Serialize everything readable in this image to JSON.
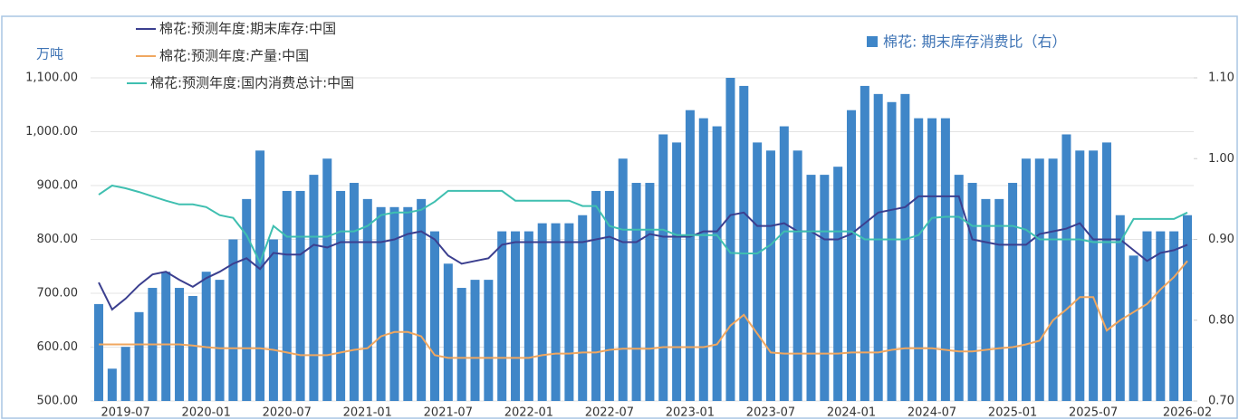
{
  "chart_data": {
    "type": "bar-line",
    "y_label": "万吨",
    "categories": [
      null,
      null,
      "2019-07",
      null,
      null,
      null,
      null,
      null,
      "2020-01",
      null,
      null,
      null,
      null,
      null,
      "2020-07",
      null,
      null,
      null,
      null,
      null,
      "2021-01",
      null,
      null,
      null,
      null,
      null,
      "2021-07",
      null,
      null,
      null,
      null,
      null,
      "2022-01",
      null,
      null,
      null,
      null,
      null,
      "2022-07",
      null,
      null,
      null,
      null,
      null,
      "2023-01",
      null,
      null,
      null,
      null,
      null,
      "2023-07",
      null,
      null,
      null,
      null,
      null,
      "2024-01",
      null,
      null,
      null,
      null,
      null,
      "2024-07",
      null,
      null,
      null,
      null,
      null,
      "2025-01",
      null,
      null,
      null,
      null,
      null,
      "2025-07",
      null,
      null,
      null,
      null,
      null,
      null,
      "2026-02"
    ],
    "ylim": [
      500,
      1100
    ],
    "yticks": [
      {
        "value": 500,
        "label": "500.00"
      },
      {
        "value": 600,
        "label": "600.00"
      },
      {
        "value": 700,
        "label": "700.00"
      },
      {
        "value": 800,
        "label": "800.00"
      },
      {
        "value": 900,
        "label": "900.00"
      },
      {
        "value": 1000,
        "label": "1,000.00"
      },
      {
        "value": 1100,
        "label": "1,100.00"
      }
    ],
    "y2lim": [
      0.7,
      1.1
    ],
    "y2ticks": [
      {
        "value": 0.7,
        "label": "0.70"
      },
      {
        "value": 0.8,
        "label": "0.80"
      },
      {
        "value": 0.9,
        "label": "0.90"
      },
      {
        "value": 1.0,
        "label": "1.00"
      },
      {
        "value": 1.1,
        "label": "1.10"
      }
    ],
    "series": [
      {
        "name": "棉花:  期末库存消费比（右）",
        "type": "bar",
        "axis": "y2",
        "color": "#3f86c8",
        "values": [
          0.82,
          0.74,
          0.767,
          0.81,
          0.84,
          0.86,
          0.84,
          0.83,
          0.86,
          0.85,
          0.9,
          0.95,
          1.01,
          0.9,
          0.96,
          0.96,
          0.98,
          1.0,
          0.96,
          0.97,
          0.95,
          0.94,
          0.94,
          0.94,
          0.95,
          0.91,
          0.87,
          0.84,
          0.85,
          0.85,
          0.91,
          0.91,
          0.91,
          0.92,
          0.92,
          0.92,
          0.93,
          0.96,
          0.96,
          1.0,
          0.97,
          0.97,
          1.03,
          1.02,
          1.06,
          1.05,
          1.04,
          1.1,
          1.09,
          1.02,
          1.01,
          1.04,
          1.01,
          0.98,
          0.98,
          0.99,
          1.06,
          1.09,
          1.08,
          1.07,
          1.08,
          1.05,
          1.05,
          1.05,
          0.98,
          0.97,
          0.95,
          0.95,
          0.97,
          1.0,
          1.0,
          1.0,
          1.03,
          1.01,
          1.01,
          1.02,
          0.93,
          0.88,
          0.91,
          0.91,
          0.91,
          0.93
        ]
      },
      {
        "name": "棉花:预测年度:期末库存:中国",
        "type": "line",
        "color": "#3b3f8f",
        "values": [
          720,
          670,
          690,
          715,
          735,
          740,
          725,
          712,
          728,
          740,
          755,
          765,
          745,
          775,
          772,
          772,
          790,
          785,
          795,
          795,
          795,
          795,
          800,
          810,
          815,
          800,
          770,
          755,
          760,
          765,
          790,
          795,
          795,
          795,
          795,
          795,
          795,
          800,
          805,
          795,
          795,
          810,
          805,
          805,
          805,
          815,
          815,
          845,
          850,
          825,
          825,
          830,
          815,
          815,
          800,
          800,
          810,
          830,
          850,
          855,
          860,
          880,
          880,
          880,
          880,
          800,
          795,
          790,
          790,
          790,
          810,
          815,
          820,
          830,
          800,
          800,
          800,
          780,
          760,
          775,
          780,
          790
        ]
      },
      {
        "name": "棉花:预测年度:产量:中国",
        "type": "line",
        "color": "#f0a760",
        "values": [
          605,
          605,
          605,
          605,
          605,
          605,
          605,
          603,
          600,
          598,
          598,
          598,
          598,
          595,
          590,
          585,
          585,
          585,
          590,
          595,
          598,
          620,
          628,
          628,
          620,
          585,
          580,
          580,
          580,
          580,
          580,
          580,
          580,
          585,
          588,
          588,
          590,
          590,
          595,
          597,
          597,
          597,
          600,
          600,
          600,
          600,
          605,
          640,
          660,
          625,
          590,
          588,
          588,
          588,
          588,
          588,
          590,
          590,
          590,
          595,
          598,
          598,
          598,
          595,
          592,
          592,
          595,
          598,
          600,
          605,
          612,
          650,
          670,
          693,
          693,
          631,
          650,
          665,
          680,
          707,
          730,
          760
        ]
      },
      {
        "name": "棉花:预测年度:国内消费总计:中国",
        "type": "line",
        "color": "#3fbfb0",
        "values": [
          883,
          900,
          895,
          888,
          880,
          872,
          865,
          865,
          860,
          845,
          840,
          808,
          757,
          825,
          805,
          805,
          805,
          805,
          815,
          815,
          825,
          845,
          850,
          850,
          855,
          870,
          890,
          890,
          890,
          890,
          890,
          872,
          872,
          872,
          872,
          872,
          862,
          862,
          825,
          818,
          818,
          818,
          818,
          808,
          808,
          808,
          808,
          775,
          774,
          774,
          790,
          815,
          815,
          815,
          815,
          815,
          815,
          800,
          800,
          800,
          800,
          808,
          840,
          842,
          842,
          825,
          825,
          825,
          825,
          818,
          800,
          800,
          800,
          800,
          795,
          795,
          795,
          838,
          838,
          838,
          838,
          850
        ]
      }
    ]
  }
}
